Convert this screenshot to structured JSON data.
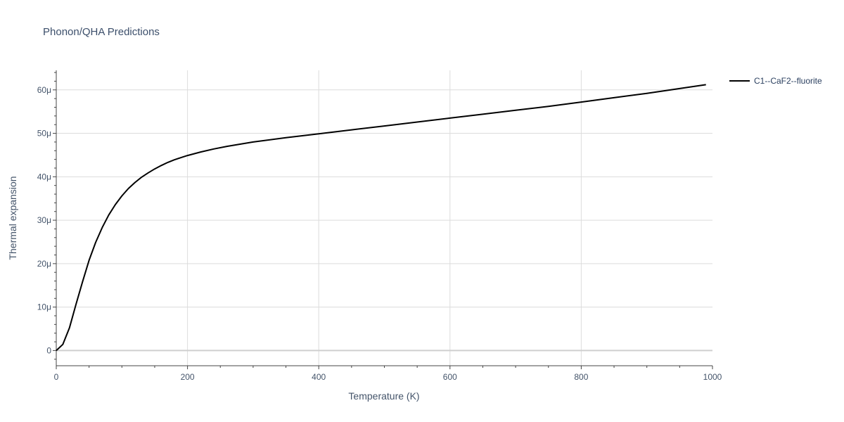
{
  "chart_data": {
    "type": "line",
    "title": "Phonon/QHA Predictions",
    "xlabel": "Temperature (K)",
    "ylabel": "Thermal expansion",
    "xlim": [
      0,
      1000
    ],
    "ylim": [
      -3.5,
      64.5
    ],
    "x_ticks": [
      0,
      200,
      400,
      600,
      800,
      1000
    ],
    "x_tick_labels": [
      "0",
      "200",
      "400",
      "600",
      "800",
      "1000"
    ],
    "y_ticks": [
      0,
      10,
      20,
      30,
      40,
      50,
      60
    ],
    "y_tick_labels": [
      "0",
      "10μ",
      "20μ",
      "30μ",
      "40μ",
      "50μ",
      "60μ"
    ],
    "y_unit": "μ (×1e-6)",
    "grid": true,
    "legend_position": "top-right-outside",
    "series": [
      {
        "name": "C1--CaF2--fluorite",
        "color": "#000000",
        "x": [
          0,
          10,
          20,
          30,
          40,
          50,
          60,
          70,
          80,
          90,
          100,
          110,
          120,
          130,
          140,
          150,
          160,
          170,
          180,
          190,
          200,
          220,
          240,
          260,
          280,
          300,
          350,
          400,
          450,
          500,
          550,
          600,
          650,
          700,
          750,
          800,
          850,
          900,
          950,
          990
        ],
        "y": [
          0,
          1.4,
          5.2,
          10.6,
          15.8,
          20.8,
          24.9,
          28.3,
          31.2,
          33.6,
          35.6,
          37.3,
          38.7,
          39.9,
          40.9,
          41.8,
          42.6,
          43.3,
          43.9,
          44.4,
          44.9,
          45.7,
          46.4,
          47.0,
          47.5,
          48.0,
          49.0,
          49.9,
          50.8,
          51.7,
          52.6,
          53.5,
          54.4,
          55.3,
          56.2,
          57.2,
          58.2,
          59.2,
          60.3,
          61.2
        ]
      }
    ]
  }
}
